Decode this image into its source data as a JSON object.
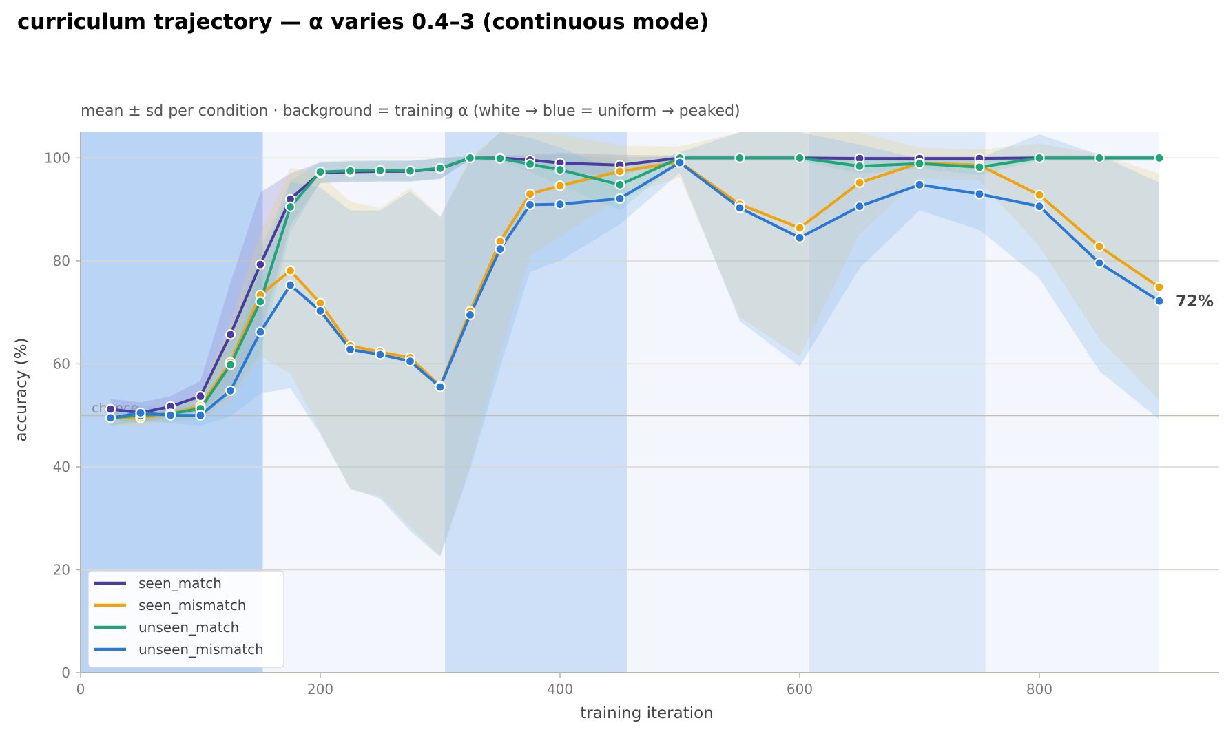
{
  "chart_data": {
    "type": "line",
    "title": "curriculum trajectory — α varies 0.4–3 (continuous mode)",
    "subtitle": "mean ± sd per condition · background = training α (white → blue = uniform → peaked)",
    "xlabel": "training iteration",
    "ylabel": "accuracy (%)",
    "xlim": [
      0,
      950
    ],
    "ylim": [
      0,
      105
    ],
    "xticks": [
      0,
      200,
      400,
      600,
      800
    ],
    "yticks": [
      0,
      20,
      40,
      60,
      80,
      100
    ],
    "grid": "horizontal",
    "legend_position": "bottom-left",
    "chance": {
      "value": 50,
      "label": "chance"
    },
    "end_annotation": "72%",
    "background_bands": [
      {
        "x0": 0,
        "x1": 152,
        "color": "#b9d4f5"
      },
      {
        "x0": 152,
        "x1": 304,
        "color": "#f3f7fd"
      },
      {
        "x0": 304,
        "x1": 456,
        "color": "#cde0f7"
      },
      {
        "x0": 456,
        "x1": 608,
        "color": "#f3f7fd"
      },
      {
        "x0": 608,
        "x1": 755,
        "color": "#dde9f9"
      },
      {
        "x0": 755,
        "x1": 900,
        "color": "#f3f7fd"
      }
    ],
    "x": [
      25,
      50,
      75,
      100,
      125,
      150,
      175,
      200,
      225,
      250,
      275,
      300,
      325,
      350,
      375,
      400,
      450,
      500,
      550,
      600,
      650,
      700,
      750,
      800,
      850,
      900
    ],
    "series": [
      {
        "name": "seen_match",
        "color": "#4b3ba0",
        "fill": "#8c7fd0",
        "values": [
          51.2,
          50.5,
          51.7,
          53.7,
          65.7,
          79.3,
          92.0,
          97.1,
          97.3,
          97.4,
          97.4,
          97.9,
          100,
          100,
          99.6,
          99.0,
          98.6,
          100,
          100,
          100,
          99.9,
          99.9,
          99.9,
          100,
          100,
          100
        ],
        "sd": [
          2,
          2,
          2,
          3,
          10,
          14,
          5,
          2,
          2,
          2,
          2,
          2,
          0.3,
          0.5,
          1,
          2,
          2,
          0.5,
          0.5,
          0.5,
          0.5,
          0.5,
          0.5,
          0.5,
          0.5,
          0.5
        ]
      },
      {
        "name": "seen_mismatch",
        "color": "#f0a30a",
        "fill": "#e8cf86",
        "values": [
          49.5,
          49.5,
          50.3,
          51.8,
          60.3,
          73.4,
          78.1,
          71.8,
          63.5,
          62.3,
          61.2,
          55.7,
          70.2,
          83.8,
          93.0,
          94.6,
          97.4,
          99.2,
          91.0,
          86.4,
          95.2,
          99.0,
          98.6,
          92.8,
          82.8,
          74.9
        ],
        "sd": [
          1.5,
          1.5,
          1.5,
          2.5,
          8,
          12,
          20,
          25,
          28,
          28,
          33,
          33,
          30,
          22,
          12,
          10,
          5,
          3,
          22,
          25,
          10,
          3,
          3,
          10,
          18,
          22
        ]
      },
      {
        "name": "unseen_match",
        "color": "#1fa678",
        "fill": "#8fd1b6",
        "values": [
          49.5,
          50.0,
          50.3,
          51.3,
          59.8,
          72.1,
          90.5,
          97.3,
          97.5,
          97.6,
          97.5,
          98.0,
          100,
          99.9,
          98.8,
          97.7,
          94.8,
          100,
          100,
          100,
          98.4,
          98.9,
          98.2,
          100,
          100,
          100
        ],
        "sd": [
          1.5,
          1.5,
          1.5,
          2,
          6,
          10,
          5,
          2,
          2,
          2,
          2,
          2,
          0.5,
          0.5,
          1.5,
          3,
          5,
          0.5,
          0.5,
          0.5,
          1.5,
          1,
          1.5,
          0.5,
          0.5,
          0.5
        ]
      },
      {
        "name": "unseen_mismatch",
        "color": "#2a78d6",
        "fill": "#8ab7ee",
        "values": [
          49.5,
          50.5,
          50.0,
          50.0,
          54.8,
          66.2,
          75.3,
          70.3,
          62.8,
          61.8,
          60.5,
          55.5,
          69.5,
          82.3,
          90.9,
          91.0,
          92.1,
          99.1,
          90.3,
          84.5,
          90.6,
          94.8,
          93.0,
          90.6,
          79.6,
          72.2
        ],
        "sd": [
          1.5,
          1.5,
          1.5,
          2,
          5,
          12,
          20,
          24,
          27,
          28,
          33,
          33,
          30,
          23,
          13,
          11,
          5,
          2,
          22,
          25,
          12,
          5,
          7,
          14,
          21,
          23
        ]
      }
    ]
  }
}
